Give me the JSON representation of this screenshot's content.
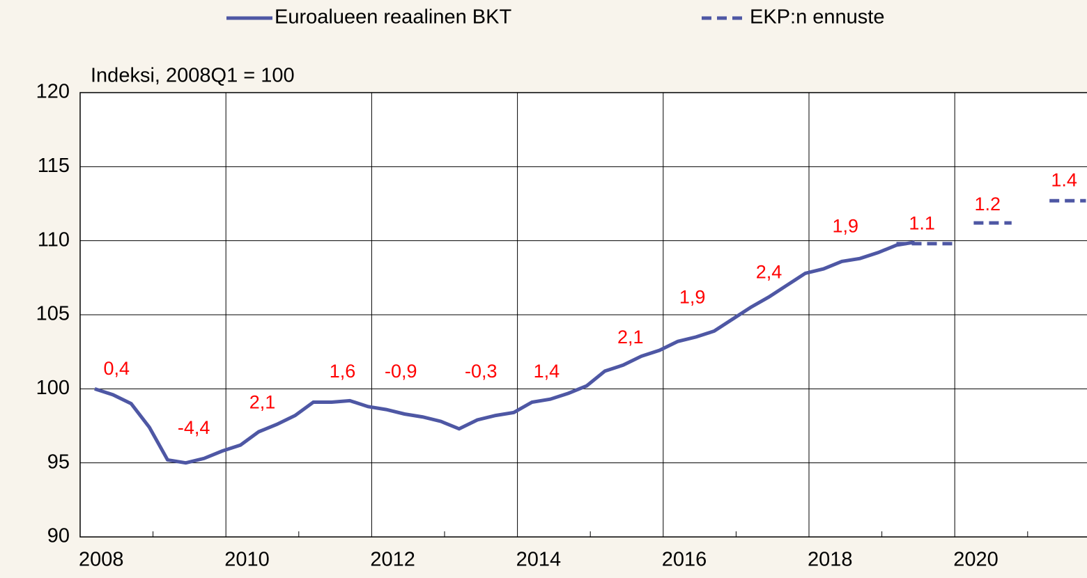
{
  "chart_data": {
    "type": "line",
    "y_label": "Indeksi, 2008Q1 = 100",
    "xlim": [
      2008,
      2022
    ],
    "xticks": [
      2008,
      2010,
      2012,
      2014,
      2016,
      2018,
      2020
    ],
    "xminor": [
      2009,
      2011,
      2013,
      2015,
      2017,
      2019,
      2021
    ],
    "ylim": [
      90,
      120
    ],
    "yticks": [
      90,
      95,
      100,
      105,
      110,
      115,
      120
    ],
    "grid": true,
    "legend": "top",
    "series": [
      {
        "name": "Euroalueen reaalinen BKT",
        "color": "#4e57a4",
        "dash": false,
        "x": [
          2008.2,
          2008.45,
          2008.7,
          2008.95,
          2009.2,
          2009.45,
          2009.7,
          2009.95,
          2010.2,
          2010.45,
          2010.7,
          2010.95,
          2011.2,
          2011.45,
          2011.7,
          2011.95,
          2012.2,
          2012.45,
          2012.7,
          2012.95,
          2013.2,
          2013.45,
          2013.7,
          2013.95,
          2014.2,
          2014.45,
          2014.7,
          2014.95,
          2015.2,
          2015.45,
          2015.7,
          2015.95,
          2016.2,
          2016.45,
          2016.7,
          2016.95,
          2017.2,
          2017.45,
          2017.7,
          2017.95,
          2018.2,
          2018.45,
          2018.7,
          2018.95,
          2019.2,
          2019.45
        ],
        "values": [
          100,
          99.6,
          99.0,
          97.4,
          95.2,
          95.0,
          95.3,
          95.8,
          96.2,
          97.1,
          97.6,
          98.2,
          99.1,
          99.1,
          99.2,
          98.8,
          98.6,
          98.3,
          98.1,
          97.8,
          97.3,
          97.9,
          98.2,
          98.4,
          99.1,
          99.3,
          99.7,
          100.2,
          101.2,
          101.6,
          102.2,
          102.6,
          103.2,
          103.5,
          103.9,
          104.7,
          105.5,
          106.2,
          107.0,
          107.8,
          108.1,
          108.6,
          108.8,
          109.2,
          109.7,
          109.9
        ]
      },
      {
        "name": "EKP:n ennuste",
        "color": "#4e57a4",
        "dash": true,
        "x": [
          2019.2,
          2019.98,
          2020.1,
          2020.26,
          2020.78,
          2020.9,
          2021.3,
          2021.8
        ],
        "values": [
          109.8,
          109.8,
          null,
          111.2,
          111.2,
          null,
          112.7,
          112.7
        ]
      }
    ],
    "annotations": [
      {
        "text": "0,4",
        "x": 2008.5,
        "y": 101.3
      },
      {
        "text": "-4,4",
        "x": 2009.56,
        "y": 97.3
      },
      {
        "text": "2,1",
        "x": 2010.5,
        "y": 99.0
      },
      {
        "text": "1,6",
        "x": 2011.6,
        "y": 101.1
      },
      {
        "text": "-0,9",
        "x": 2012.4,
        "y": 101.1
      },
      {
        "text": "-0,3",
        "x": 2013.5,
        "y": 101.1
      },
      {
        "text": "1,4",
        "x": 2014.4,
        "y": 101.1
      },
      {
        "text": "2,1",
        "x": 2015.55,
        "y": 103.4
      },
      {
        "text": "1,9",
        "x": 2016.4,
        "y": 106.1
      },
      {
        "text": "2,4",
        "x": 2017.45,
        "y": 107.8
      },
      {
        "text": "1,9",
        "x": 2018.5,
        "y": 110.9
      },
      {
        "text": "1.1",
        "x": 2019.55,
        "y": 111.1
      },
      {
        "text": "1.2",
        "x": 2020.45,
        "y": 112.4
      },
      {
        "text": "1.4",
        "x": 2021.5,
        "y": 114.0
      }
    ]
  }
}
